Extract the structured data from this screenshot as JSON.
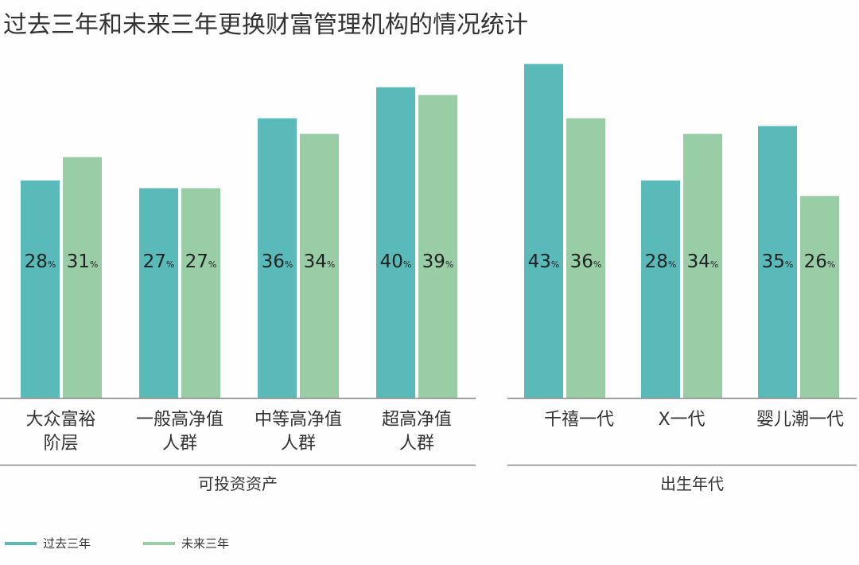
{
  "title": "过去三年和未来三年更换财富管理机构的情况统计",
  "colors": {
    "past": "#59bab9",
    "future": "#98cda6",
    "axis": "#888888",
    "text": "#222222"
  },
  "legend": [
    {
      "label": "过去三年",
      "color": "#59bab9"
    },
    {
      "label": "未来三年",
      "color": "#98cda6"
    }
  ],
  "chart_data": [
    {
      "type": "bar",
      "group_label": "可投资资产",
      "categories": [
        [
          "大众富裕",
          "阶层"
        ],
        [
          "一般高净值",
          "人群"
        ],
        [
          "中等高净值",
          "人群"
        ],
        [
          "超高净值",
          "人群"
        ]
      ],
      "series": [
        {
          "name": "过去三年",
          "values": [
            28,
            27,
            36,
            40
          ]
        },
        {
          "name": "未来三年",
          "values": [
            31,
            27,
            34,
            39
          ]
        }
      ],
      "unit": "%",
      "ylim": [
        0,
        43
      ]
    },
    {
      "type": "bar",
      "group_label": "出生年代",
      "categories": [
        [
          "千禧一代"
        ],
        [
          "X一代"
        ],
        [
          "婴儿潮一代"
        ]
      ],
      "series": [
        {
          "name": "过去三年",
          "values": [
            43,
            28,
            35
          ]
        },
        {
          "name": "未来三年",
          "values": [
            36,
            34,
            26
          ]
        }
      ],
      "unit": "%",
      "ylim": [
        0,
        43
      ]
    }
  ]
}
